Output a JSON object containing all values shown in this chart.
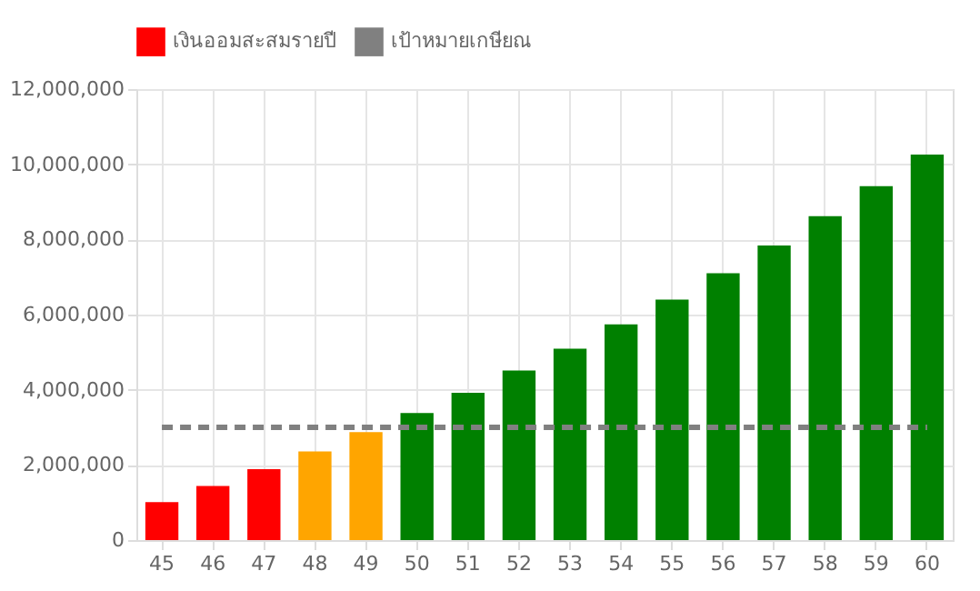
{
  "chart_data": {
    "type": "bar",
    "categories": [
      "45",
      "46",
      "47",
      "48",
      "49",
      "50",
      "51",
      "52",
      "53",
      "54",
      "55",
      "56",
      "57",
      "58",
      "59",
      "60"
    ],
    "series": [
      {
        "name": "เงินออมสะสมรายปี",
        "color": "#ff0000",
        "colors": [
          "#ff0000",
          "#ff0000",
          "#ff0000",
          "#ffa500",
          "#ffa500",
          "#008000",
          "#008000",
          "#008000",
          "#008000",
          "#008000",
          "#008000",
          "#008000",
          "#008000",
          "#008000",
          "#008000",
          "#008000"
        ],
        "values": [
          1010000,
          1440000,
          1890000,
          2360000,
          2870000,
          3380000,
          3920000,
          4510000,
          5090000,
          5740000,
          6400000,
          7100000,
          7840000,
          8620000,
          9420000,
          10260000
        ]
      },
      {
        "name": "เป้าหมายเกษียณ",
        "type": "line",
        "color": "#808080",
        "line_style": "dashed",
        "marker": "none",
        "values": [
          3000000,
          3000000,
          3000000,
          3000000,
          3000000,
          3000000,
          3000000,
          3000000,
          3000000,
          3000000,
          3000000,
          3000000,
          3000000,
          3000000,
          3000000,
          3000000
        ]
      }
    ],
    "ylim": [
      0,
      12000000
    ],
    "yticks": [
      0,
      {
        "value": 2000000,
        "label": "2,000,000"
      },
      {
        "value": 4000000,
        "label": "4,000,000"
      },
      {
        "value": 6000000,
        "label": "6,000,000"
      },
      {
        "value": 8000000,
        "label": "8,000,000"
      },
      {
        "value": 10000000,
        "label": "10,000,000"
      },
      {
        "value": 12000000,
        "label": "12,000,000"
      }
    ],
    "grid": true,
    "legend": "top"
  }
}
